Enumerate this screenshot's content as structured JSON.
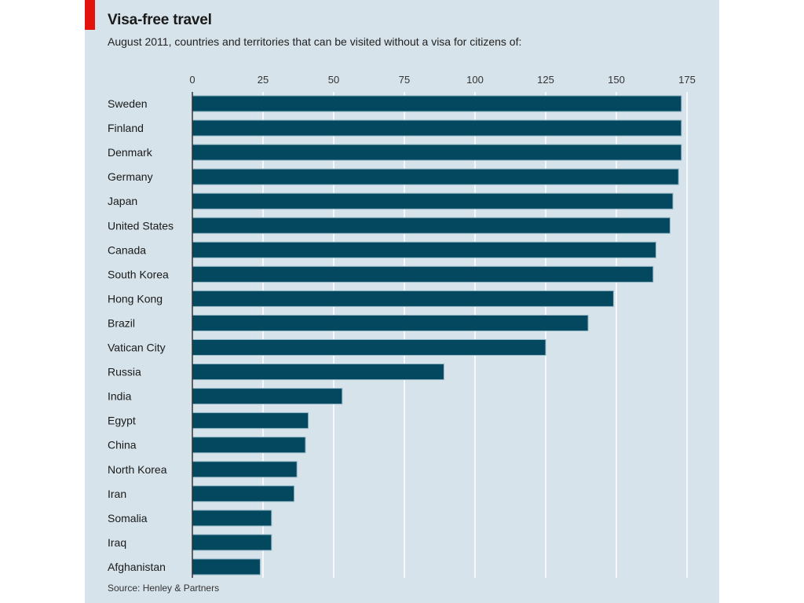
{
  "header": {
    "title": "Visa-free travel",
    "subtitle": "August 2011, countries and territories that can be visited without a visa for citizens of:"
  },
  "footer": {
    "source": "Source: Henley & Partners"
  },
  "colors": {
    "bar": "#03485f",
    "bar_edge": "#8fb4c4",
    "panel": "#d6e3ea",
    "gridline": "#ffffff",
    "accent": "#e3120b"
  },
  "chart_data": {
    "type": "bar",
    "orientation": "horizontal",
    "title": "Visa-free travel",
    "subtitle": "August 2011, countries and territories that can be visited without a visa for citizens of:",
    "categories": [
      "Sweden",
      "Finland",
      "Denmark",
      "Germany",
      "Japan",
      "United States",
      "Canada",
      "South Korea",
      "Hong Kong",
      "Brazil",
      "Vatican City",
      "Russia",
      "India",
      "Egypt",
      "China",
      "North Korea",
      "Iran",
      "Somalia",
      "Iraq",
      "Afghanistan"
    ],
    "values": [
      173,
      173,
      173,
      172,
      170,
      169,
      164,
      163,
      149,
      140,
      125,
      89,
      53,
      41,
      40,
      37,
      36,
      28,
      28,
      24
    ],
    "xlim": [
      0,
      175
    ],
    "xticks": [
      0,
      25,
      50,
      75,
      100,
      125,
      150,
      175
    ],
    "xaxis_position": "top",
    "grid": true,
    "legend": "none",
    "source": "Source: Henley & Partners"
  }
}
